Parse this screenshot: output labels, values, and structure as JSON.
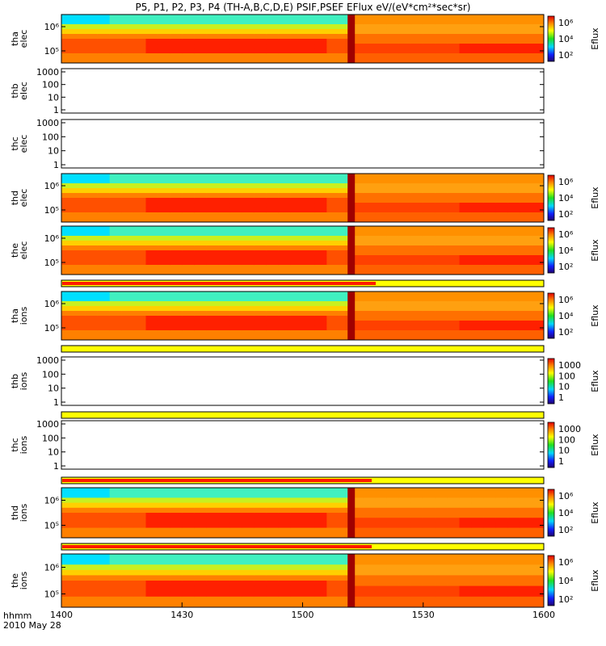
{
  "title": "P5, P1, P2, P3, P4 (TH-A,B,C,D,E) PSIF,PSEF EFlux eV/(eV*cm²*sec*sr)",
  "time_label": "hhmm",
  "date_label": "2010 May 28",
  "colors": {
    "red": "#ff1a00",
    "yellow": "#ffff00",
    "dark_red": "#a00000",
    "frame": "#000000"
  },
  "chart_data": [
    {
      "type": "heatmap",
      "panel": "tha-elec",
      "ylabel": [
        "tha",
        "elec"
      ],
      "yticks": [
        "10⁶",
        "10⁵"
      ],
      "xlim": [
        "1400",
        "1600"
      ],
      "colorbar": {
        "label": "Eflux",
        "ticks": [
          "10⁶",
          "10⁴",
          "10²"
        ]
      },
      "marker_time": "1512"
    },
    {
      "type": "line",
      "panel": "thb-elec",
      "ylabel": [
        "thb",
        "elec"
      ],
      "yticks": [
        "1000",
        "100",
        "10",
        "1"
      ],
      "data": "none"
    },
    {
      "type": "line",
      "panel": "thc-elec",
      "ylabel": [
        "thc",
        "elec"
      ],
      "yticks": [
        "1000",
        "100",
        "10",
        "1"
      ],
      "data": "none"
    },
    {
      "type": "heatmap",
      "panel": "thd-elec",
      "ylabel": [
        "thd",
        "elec"
      ],
      "yticks": [
        "10⁶",
        "10⁵"
      ],
      "colorbar": {
        "label": "Eflux",
        "ticks": [
          "10⁶",
          "10⁴",
          "10²"
        ]
      },
      "marker_time": "1512"
    },
    {
      "type": "heatmap",
      "panel": "the-elec",
      "ylabel": [
        "the",
        "elec"
      ],
      "yticks": [
        "10⁶",
        "10⁵"
      ],
      "colorbar": {
        "label": "Eflux",
        "ticks": [
          "10⁶",
          "10⁴",
          "10²"
        ]
      },
      "marker_time": "1512"
    },
    {
      "type": "heatmap",
      "panel": "tha-ions",
      "ylabel": [
        "tha",
        "ions"
      ],
      "yticks": [
        "10⁶",
        "10⁵"
      ],
      "colorbar": {
        "label": "Eflux",
        "ticks": [
          "10⁶",
          "10⁴",
          "10²"
        ]
      },
      "marker_time": "1512",
      "mode_bar": {
        "red_until": "1518"
      }
    },
    {
      "type": "line",
      "panel": "thb-ions",
      "ylabel": [
        "thb",
        "ions"
      ],
      "yticks": [
        "1000",
        "100",
        "10",
        "1"
      ],
      "colorbar": {
        "label": "Eflux",
        "ticks": [
          "1000",
          "100",
          "10",
          "1"
        ]
      },
      "data": "none",
      "mode_bar": {
        "red_until": "1400"
      }
    },
    {
      "type": "line",
      "panel": "thc-ions",
      "ylabel": [
        "thc",
        "ions"
      ],
      "yticks": [
        "1000",
        "100",
        "10",
        "1"
      ],
      "colorbar": {
        "label": "Eflux",
        "ticks": [
          "1000",
          "100",
          "10",
          "1"
        ]
      },
      "data": "none",
      "mode_bar": {
        "red_until": "1400"
      }
    },
    {
      "type": "heatmap",
      "panel": "thd-ions",
      "ylabel": [
        "thd",
        "ions"
      ],
      "yticks": [
        "10⁶",
        "10⁵"
      ],
      "colorbar": {
        "label": "Eflux",
        "ticks": [
          "10⁶",
          "10⁴",
          "10²"
        ]
      },
      "marker_time": "1512",
      "mode_bar": {
        "red_until": "1517"
      }
    },
    {
      "type": "heatmap",
      "panel": "the-ions",
      "ylabel": [
        "the",
        "ions"
      ],
      "yticks": [
        "10⁶",
        "10⁵"
      ],
      "colorbar": {
        "label": "Eflux",
        "ticks": [
          "10⁶",
          "10⁴",
          "10²"
        ]
      },
      "marker_time": "1512",
      "mode_bar": {
        "red_until": "1517"
      }
    }
  ],
  "x_axis": {
    "ticks": [
      "1400",
      "1430",
      "1500",
      "1530",
      "1600"
    ],
    "range": [
      1400,
      1600
    ]
  }
}
